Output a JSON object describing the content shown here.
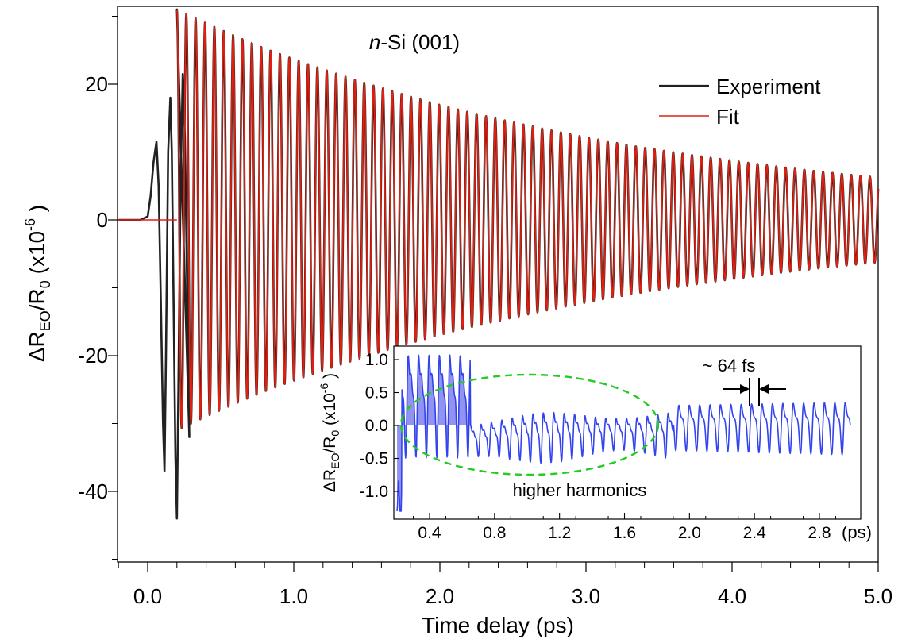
{
  "chart_data": [
    {
      "type": "line",
      "title": "n-Si (001)",
      "title_italic_part": "n",
      "title_rest": "-Si (001)",
      "xlabel": "Time delay (ps)",
      "ylabel": {
        "prefix": "ΔR",
        "sub1": "EO",
        "mid": "/R",
        "sub2": "0",
        "tail": " (x10",
        "sup": "-6",
        "end": " )"
      },
      "xlim": [
        -0.2,
        5.0
      ],
      "ylim": [
        -50,
        32
      ],
      "xticks": [
        0.0,
        1.0,
        2.0,
        3.0,
        4.0,
        5.0
      ],
      "xtick_labels": [
        "0.0",
        "1.0",
        "2.0",
        "3.0",
        "4.0",
        "5.0"
      ],
      "yticks": [
        -40,
        -20,
        0,
        20
      ],
      "ytick_labels": [
        "-40",
        "-20",
        "0",
        "20"
      ],
      "grid": false,
      "legend_position": "top-right",
      "series": [
        {
          "name": "Experiment",
          "color": "#222222",
          "early_transient": [
            [
              -0.2,
              0.0
            ],
            [
              -0.05,
              0.0
            ],
            [
              0.0,
              0.5
            ],
            [
              0.02,
              3.5
            ],
            [
              0.04,
              8.5
            ],
            [
              0.06,
              11.5
            ],
            [
              0.075,
              5.0
            ],
            [
              0.09,
              -12.0
            ],
            [
              0.105,
              -30.0
            ],
            [
              0.115,
              -37.0
            ],
            [
              0.125,
              -20.0
            ],
            [
              0.14,
              10.0
            ],
            [
              0.155,
              18.0
            ],
            [
              0.165,
              10.0
            ],
            [
              0.175,
              -8.0
            ],
            [
              0.19,
              -35.0
            ],
            [
              0.2,
              -44.0
            ],
            [
              0.21,
              -25.0
            ],
            [
              0.225,
              5.0
            ],
            [
              0.24,
              21.5
            ],
            [
              0.255,
              12.0
            ],
            [
              0.27,
              -10.0
            ],
            [
              0.285,
              -32.0
            ]
          ],
          "oscillation": {
            "frequency_THz": 15.6,
            "amplitude_at_0_2ps": 31,
            "decay_time_ps": 3.0,
            "start_ps": 0.2
          }
        },
        {
          "name": "Fit",
          "color": "#e02010",
          "baseline": [
            [
              -0.2,
              0.0
            ],
            [
              0.2,
              0.0
            ]
          ],
          "oscillation": {
            "frequency_THz": 15.6,
            "amplitude_at_0_2ps": 31,
            "decay_time_ps": 3.0,
            "start_ps": 0.2,
            "end_ps": 5.0
          }
        }
      ]
    },
    {
      "type": "line",
      "title": "",
      "xlabel": "",
      "x_unit_label": "(ps)",
      "ylabel": {
        "prefix": "ΔR",
        "sub1": "EO",
        "mid": "/R",
        "sub2": "0",
        "tail": " (x10",
        "sup": "-6",
        "end": " )"
      },
      "xlim": [
        0.2,
        3.0
      ],
      "ylim": [
        -1.3,
        1.25
      ],
      "xticks": [
        0.4,
        0.8,
        1.2,
        1.6,
        2.0,
        2.4,
        2.8
      ],
      "xtick_labels": [
        "0.4",
        "0.8",
        "1.2",
        "1.6",
        "2.0",
        "2.4",
        "2.8"
      ],
      "yticks": [
        -1.0,
        -0.5,
        0.0,
        0.5,
        1.0
      ],
      "ytick_labels": [
        "-1.0",
        "-0.5",
        "0.0",
        "0.5",
        "1.0"
      ],
      "grid": false,
      "series": [
        {
          "name": "",
          "color": "#3344ee",
          "fill_color": "#7777ee",
          "filled_region_ps": [
            0.2,
            0.65
          ],
          "oscillation": {
            "period_fs": 64
          }
        }
      ],
      "annotations": [
        {
          "text": "~ 64 fs"
        },
        {
          "text": "higher harmonics"
        }
      ],
      "ellipse_color": "#22cc22"
    }
  ],
  "legend": {
    "items": [
      {
        "label": "Experiment",
        "color": "#222222"
      },
      {
        "label": "Fit",
        "color": "#e02010"
      }
    ]
  }
}
